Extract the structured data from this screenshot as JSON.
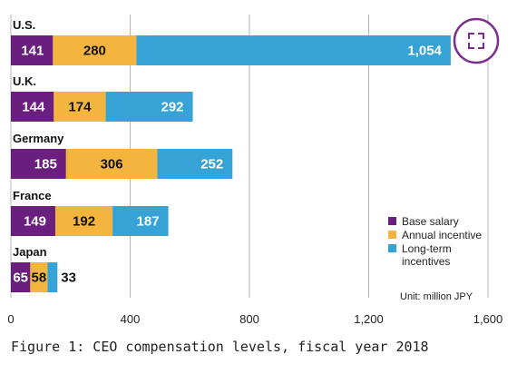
{
  "caption": "Figure 1: CEO compensation levels, fiscal year 2018",
  "colors": {
    "base": "#6a1f7f",
    "annual": "#f4b53f",
    "longterm": "#35a3d6",
    "grid": "#b5b5b5",
    "expand_ring": "#7b2d8e"
  },
  "expand_icon": "expand-icon",
  "chart_data": {
    "type": "bar",
    "orientation": "horizontal",
    "stacked": true,
    "title": "",
    "xlabel": "",
    "ylabel": "",
    "unit_note": "Unit: million JPY",
    "categories": [
      "U.S.",
      "U.K.",
      "Germany",
      "France",
      "Japan"
    ],
    "series": [
      {
        "name": "Base salary",
        "values": [
          141,
          144,
          185,
          149,
          65
        ],
        "labels": [
          "141",
          "144",
          "185",
          "149",
          "65"
        ]
      },
      {
        "name": "Annual incentive",
        "values": [
          280,
          174,
          306,
          192,
          58
        ],
        "labels": [
          "280",
          "174",
          "306",
          "192",
          "58"
        ]
      },
      {
        "name": "Long-term incentives",
        "legend_lines": [
          "Long-term",
          "incentives"
        ],
        "values": [
          1054,
          292,
          252,
          187,
          33
        ],
        "labels": [
          "1,054",
          "292",
          "252",
          "187",
          "33"
        ]
      }
    ],
    "xlim": [
      0,
      1600
    ],
    "xticks": [
      0,
      400,
      800,
      1200,
      1600
    ],
    "xtick_labels": [
      "0",
      "400",
      "800",
      "1,200",
      "1,600"
    ],
    "grid": true,
    "legend_position": "bottom-right"
  }
}
